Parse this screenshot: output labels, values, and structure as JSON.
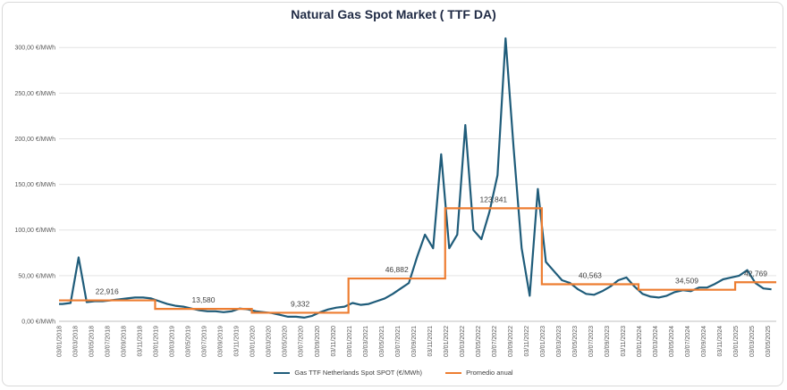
{
  "chart_data": {
    "type": "line",
    "title": "Natural Gas Spot Market ( TTF DA)",
    "ylim": [
      0,
      310
    ],
    "y_ticks": [
      "0,00 €/MWh",
      "50,00 €/MWh",
      "100,00 €/MWh",
      "150,00 €/MWh",
      "200,00 €/MWh",
      "250,00 €/MWh",
      "300,00 €/MWh"
    ],
    "y_tick_values": [
      0,
      50,
      100,
      150,
      200,
      250,
      300
    ],
    "x_ticks": [
      "03/01/2018",
      "03/03/2018",
      "03/05/2018",
      "03/07/2018",
      "03/09/2018",
      "03/11/2018",
      "03/01/2019",
      "03/03/2019",
      "03/05/2019",
      "03/07/2019",
      "03/09/2019",
      "03/11/2019",
      "03/01/2020",
      "03/03/2020",
      "03/05/2020",
      "03/07/2020",
      "03/09/2020",
      "03/11/2020",
      "03/01/2021",
      "03/03/2021",
      "03/05/2021",
      "03/07/2021",
      "03/09/2021",
      "03/11/2021",
      "03/01/2022",
      "03/03/2022",
      "03/05/2022",
      "03/07/2022",
      "03/09/2022",
      "03/11/2022",
      "03/01/2023",
      "03/03/2023",
      "03/05/2023",
      "03/07/2023",
      "03/09/2023",
      "03/11/2023",
      "03/01/2024",
      "03/03/2024",
      "03/05/2024",
      "03/07/2024",
      "03/09/2024",
      "03/11/2024",
      "03/01/2025",
      "03/03/2025",
      "03/05/2025"
    ],
    "grid": true,
    "legend_position": "bottom",
    "series": [
      {
        "name": "Gas TTF Netherlands Spot SPOT (€/MWh)",
        "color": "#1f5c7a",
        "x": [
          "2018-01",
          "2018-02",
          "2018-03",
          "2018-04",
          "2018-05",
          "2018-06",
          "2018-07",
          "2018-08",
          "2018-09",
          "2018-10",
          "2018-11",
          "2018-12",
          "2019-01",
          "2019-02",
          "2019-03",
          "2019-04",
          "2019-05",
          "2019-06",
          "2019-07",
          "2019-08",
          "2019-09",
          "2019-10",
          "2019-11",
          "2019-12",
          "2020-01",
          "2020-02",
          "2020-03",
          "2020-04",
          "2020-05",
          "2020-06",
          "2020-07",
          "2020-08",
          "2020-09",
          "2020-10",
          "2020-11",
          "2020-12",
          "2021-01",
          "2021-02",
          "2021-03",
          "2021-04",
          "2021-05",
          "2021-06",
          "2021-07",
          "2021-08",
          "2021-09",
          "2021-10",
          "2021-11",
          "2021-12",
          "2022-01",
          "2022-02",
          "2022-03",
          "2022-04",
          "2022-05",
          "2022-06",
          "2022-07",
          "2022-08",
          "2022-09",
          "2022-10",
          "2022-11",
          "2022-12",
          "2023-01",
          "2023-02",
          "2023-03",
          "2023-04",
          "2023-05",
          "2023-06",
          "2023-07",
          "2023-08",
          "2023-09",
          "2023-10",
          "2023-11",
          "2023-12",
          "2024-01",
          "2024-02",
          "2024-03",
          "2024-04",
          "2024-05",
          "2024-06",
          "2024-07",
          "2024-08",
          "2024-09",
          "2024-10",
          "2024-11",
          "2024-12",
          "2025-01",
          "2025-02",
          "2025-03",
          "2025-04",
          "2025-05"
        ],
        "values": [
          19,
          20,
          70,
          21,
          22,
          22,
          23,
          24,
          25,
          26,
          26,
          25,
          22,
          19,
          17,
          16,
          14,
          12,
          11,
          11,
          10,
          11,
          14,
          13,
          11,
          10,
          9,
          7,
          5,
          5,
          4,
          6,
          10,
          13,
          15,
          16,
          20,
          18,
          19,
          22,
          25,
          30,
          36,
          42,
          70,
          95,
          80,
          183,
          80,
          95,
          215,
          100,
          90,
          120,
          160,
          310,
          190,
          80,
          28,
          145,
          65,
          55,
          45,
          42,
          35,
          30,
          29,
          33,
          38,
          45,
          48,
          38,
          30,
          27,
          26,
          28,
          32,
          34,
          33,
          37,
          37,
          41,
          46,
          48,
          50,
          56,
          42,
          36,
          35
        ]
      },
      {
        "name": "Promedio anual",
        "color": "#ed7d31",
        "years": [
          "2018",
          "2019",
          "2020",
          "2021",
          "2022",
          "2023",
          "2024",
          "2025"
        ],
        "values": [
          22.916,
          13.58,
          9.332,
          46.882,
          123.841,
          40.563,
          34.509,
          42.769
        ],
        "labels": [
          "22,916",
          "13,580",
          "9,332",
          "46,882",
          "123,841",
          "40,563",
          "34,509",
          "42,769"
        ]
      }
    ]
  }
}
